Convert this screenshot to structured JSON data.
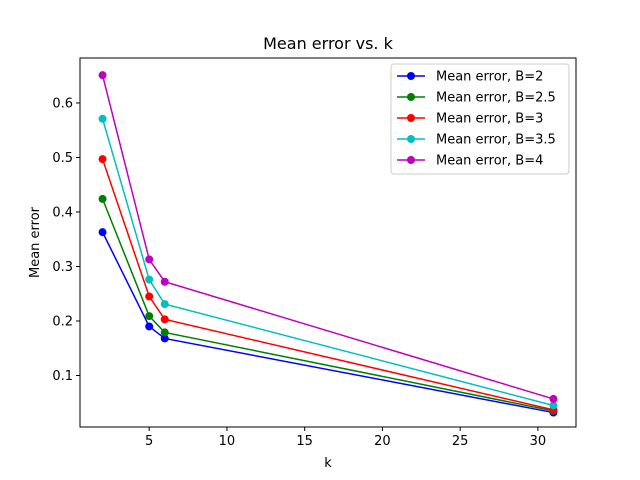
{
  "chart_data": {
    "type": "line",
    "title": "Mean error vs. k",
    "xlabel": "k",
    "ylabel": "Mean error",
    "xlim": [
      0.55,
      32.45
    ],
    "ylim": [
      0.0055,
      0.6825
    ],
    "xticks": [
      5,
      10,
      15,
      20,
      25,
      30
    ],
    "yticks": [
      0.1,
      0.2,
      0.3,
      0.4,
      0.5,
      0.6
    ],
    "grid": false,
    "legend_position": "top-right",
    "x": [
      2,
      5,
      6,
      31
    ],
    "series": [
      {
        "name": "Mean error, B=2",
        "color": "#0000ff",
        "values": [
          0.363,
          0.19,
          0.168,
          0.032
        ]
      },
      {
        "name": "Mean error, B=2.5",
        "color": "#008000",
        "values": [
          0.424,
          0.209,
          0.179,
          0.035
        ]
      },
      {
        "name": "Mean error, B=3",
        "color": "#ff0000",
        "values": [
          0.497,
          0.245,
          0.203,
          0.037
        ]
      },
      {
        "name": "Mean error, B=3.5",
        "color": "#00bfbf",
        "values": [
          0.571,
          0.276,
          0.231,
          0.045
        ]
      },
      {
        "name": "Mean error, B=4",
        "color": "#bf00bf",
        "values": [
          0.651,
          0.313,
          0.272,
          0.057
        ]
      }
    ]
  }
}
